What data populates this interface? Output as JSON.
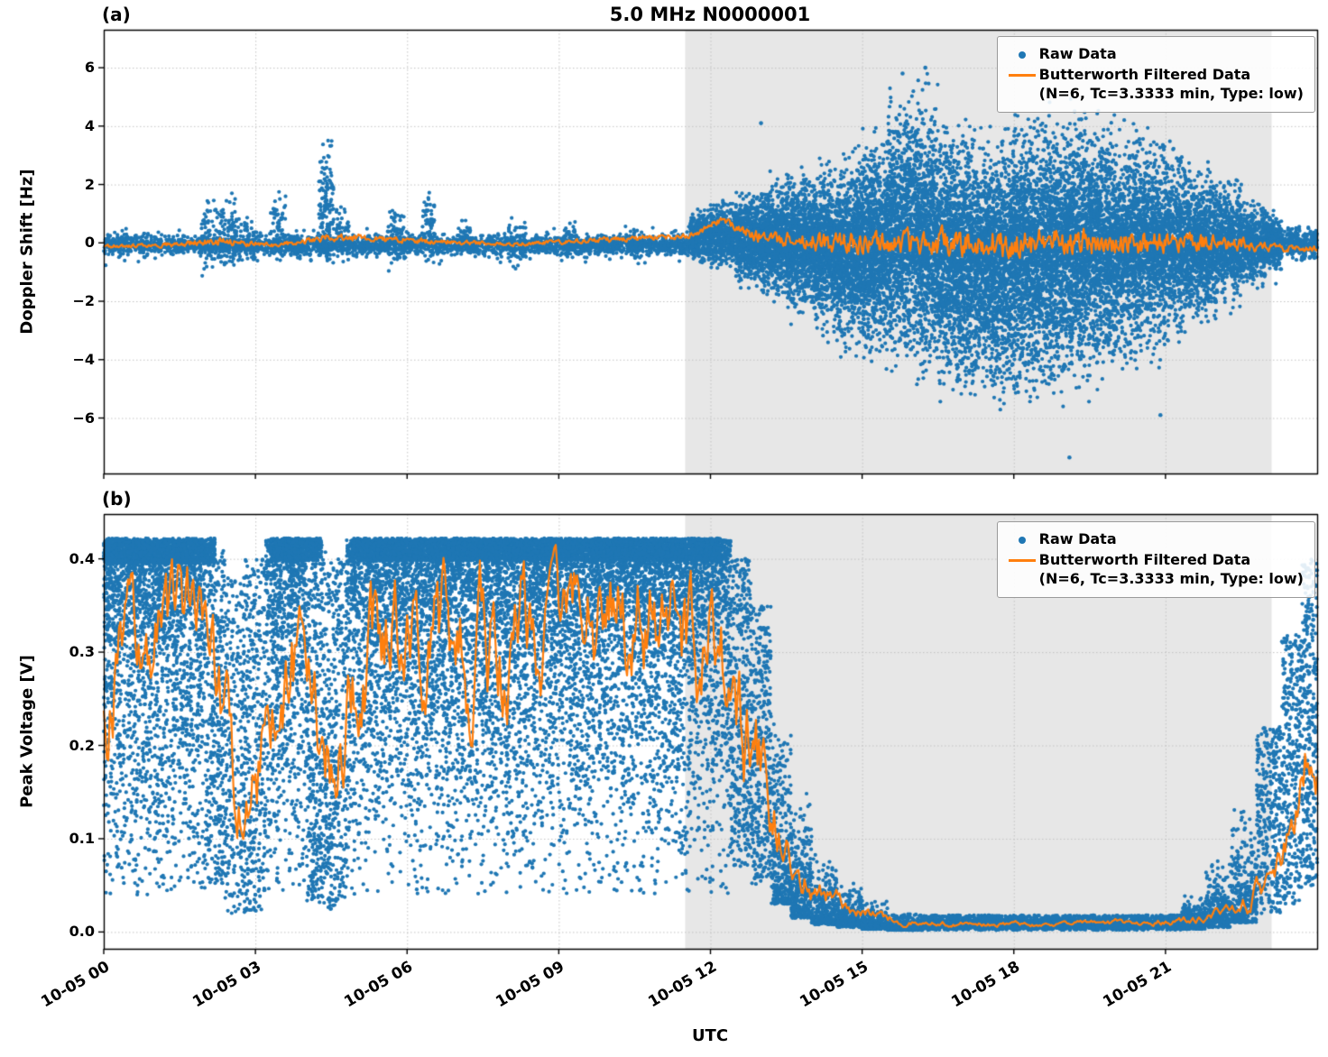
{
  "figure": {
    "title": "5.0 MHz N0000001",
    "xlabel": "UTC"
  },
  "colors": {
    "raw": "#1f77b4",
    "filtered": "#ff7f0e",
    "shade": "#e7e7e7",
    "grid": "#c3c3c3",
    "frame": "#000000"
  },
  "legend": {
    "raw_label": "Raw Data",
    "filtered_label": "Butterworth Filtered Data",
    "filtered_sub": "(N=6, Tc=3.3333 min, Type: low)"
  },
  "chart_data": [
    {
      "type": "scatter",
      "panel": "(a)",
      "ylabel": "Doppler Shift [Hz]",
      "xlim": [
        0,
        24
      ],
      "ylim": [
        -7.9,
        7.3
      ],
      "yticks": [
        -6,
        -4,
        -2,
        0,
        2,
        4,
        6
      ],
      "ytick_labels": [
        "−6",
        "−4",
        "−2",
        "0",
        "2",
        "4",
        "6"
      ],
      "xticks": [
        0,
        3,
        6,
        9,
        12,
        15,
        18,
        21
      ],
      "xtick_labels": [
        "10-05 00",
        "10-05 03",
        "10-05 06",
        "10-05 09",
        "10-05 12",
        "10-05 15",
        "10-05 18",
        "10-05 21"
      ],
      "show_xtick_labels": false,
      "shaded_x": [
        11.5,
        23.1
      ],
      "segment_format": [
        "x0",
        "x1",
        "ymin",
        "ymax",
        "n",
        "dist"
      ],
      "scatter_envelope": [
        [
          0,
          11.6,
          -0.5,
          0.35,
          2400,
          "c"
        ],
        [
          0,
          11.6,
          -0.85,
          0.65,
          700,
          "c"
        ],
        [
          1.9,
          2.6,
          -1.4,
          2.1,
          150,
          "c"
        ],
        [
          2.6,
          3.1,
          -0.9,
          1.2,
          70,
          "c"
        ],
        [
          3.3,
          3.6,
          -0.8,
          2.2,
          60,
          "c"
        ],
        [
          4.25,
          4.55,
          -1.6,
          4.35,
          140,
          "c"
        ],
        [
          4.6,
          4.85,
          -0.7,
          1.5,
          50,
          "c"
        ],
        [
          5.6,
          5.95,
          -1.2,
          1.6,
          80,
          "c"
        ],
        [
          6.3,
          6.55,
          -0.8,
          2.3,
          60,
          "c"
        ],
        [
          7.0,
          7.25,
          -0.6,
          1.1,
          40,
          "c"
        ],
        [
          8.0,
          8.35,
          -1.3,
          1.3,
          70,
          "c"
        ],
        [
          9.1,
          9.35,
          -0.7,
          0.9,
          40,
          "c"
        ],
        [
          10.4,
          10.65,
          -0.9,
          0.7,
          40,
          "c"
        ],
        [
          11.6,
          12.0,
          -0.9,
          1.3,
          350,
          "c"
        ],
        [
          12.0,
          12.5,
          -1.1,
          1.6,
          450,
          "c"
        ],
        [
          12.5,
          13.0,
          -1.7,
          2.0,
          550,
          "c"
        ],
        [
          13.0,
          13.5,
          -2.4,
          2.6,
          650,
          "c"
        ],
        [
          13.5,
          14.0,
          -3.0,
          3.0,
          700,
          "c"
        ],
        [
          14.0,
          14.5,
          -3.6,
          3.2,
          750,
          "c"
        ],
        [
          14.5,
          15.0,
          -4.2,
          3.6,
          800,
          "c"
        ],
        [
          15.0,
          15.5,
          -4.8,
          4.3,
          850,
          "c"
        ],
        [
          15.5,
          16.0,
          -5.2,
          5.9,
          850,
          "c"
        ],
        [
          16.0,
          16.5,
          -5.7,
          6.1,
          880,
          "c"
        ],
        [
          16.5,
          17.0,
          -6.0,
          4.9,
          900,
          "c"
        ],
        [
          17.0,
          17.5,
          -6.2,
          4.8,
          900,
          "c"
        ],
        [
          17.5,
          18.0,
          -6.5,
          5.0,
          900,
          "c"
        ],
        [
          18.0,
          18.5,
          -6.4,
          5.2,
          900,
          "c"
        ],
        [
          18.5,
          19.0,
          -6.2,
          5.4,
          850,
          "c"
        ],
        [
          19.0,
          19.5,
          -6.0,
          5.6,
          850,
          "c"
        ],
        [
          19.5,
          20.0,
          -5.6,
          5.2,
          800,
          "c"
        ],
        [
          20.0,
          20.5,
          -5.2,
          4.8,
          750,
          "c"
        ],
        [
          20.5,
          21.0,
          -4.6,
          4.4,
          700,
          "c"
        ],
        [
          21.0,
          21.5,
          -4.0,
          3.9,
          650,
          "c"
        ],
        [
          21.5,
          22.0,
          -3.4,
          3.3,
          550,
          "c"
        ],
        [
          22.0,
          22.5,
          -2.6,
          2.6,
          450,
          "c"
        ],
        [
          22.5,
          23.0,
          -1.8,
          1.8,
          400,
          "c"
        ],
        [
          23.0,
          23.3,
          -1.2,
          1.2,
          250,
          "c"
        ],
        [
          23.3,
          24.0,
          -0.8,
          0.7,
          300,
          "c"
        ],
        [
          12.5,
          23.2,
          -1.6,
          1.4,
          2600,
          "c"
        ]
      ],
      "outliers": [
        [
          19.1,
          -7.35
        ],
        [
          15.8,
          5.8
        ],
        [
          16.25,
          6.0
        ],
        [
          20.9,
          -5.9
        ],
        [
          13.0,
          4.1
        ]
      ],
      "line_envelope_format": [
        "x0",
        "x1",
        "base",
        "amplitude"
      ],
      "line_envelope": [
        [
          0,
          1.9,
          -0.1,
          0.1
        ],
        [
          1.9,
          2.6,
          0.05,
          0.18
        ],
        [
          2.6,
          4.2,
          -0.08,
          0.1
        ],
        [
          4.2,
          4.6,
          0.2,
          0.2
        ],
        [
          4.6,
          11.5,
          -0.05,
          0.09
        ],
        [
          11.5,
          11.9,
          0.25,
          0.15
        ],
        [
          11.9,
          12.5,
          0.8,
          0.2
        ],
        [
          12.5,
          13.2,
          0.25,
          0.3
        ],
        [
          13.2,
          15.0,
          0.0,
          0.5
        ],
        [
          15.0,
          20.0,
          0.0,
          0.8
        ],
        [
          20.0,
          22.0,
          0.0,
          0.6
        ],
        [
          22.0,
          23.0,
          -0.05,
          0.35
        ],
        [
          23.0,
          24.0,
          -0.2,
          0.15
        ]
      ]
    },
    {
      "type": "scatter",
      "panel": "(b)",
      "ylabel": "Peak Voltage [V]",
      "xlim": [
        0,
        24
      ],
      "ylim": [
        -0.018,
        0.448
      ],
      "yticks": [
        0.0,
        0.1,
        0.2,
        0.3,
        0.4
      ],
      "ytick_labels": [
        "0.0",
        "0.1",
        "0.2",
        "0.3",
        "0.4"
      ],
      "xticks": [
        0,
        3,
        6,
        9,
        12,
        15,
        18,
        21
      ],
      "xtick_labels": [
        "10-05 00",
        "10-05 03",
        "10-05 06",
        "10-05 09",
        "10-05 12",
        "10-05 15",
        "10-05 18",
        "10-05 21"
      ],
      "show_xtick_labels": true,
      "shaded_x": [
        11.5,
        23.1
      ],
      "segment_format": [
        "x0",
        "x1",
        "ymin",
        "ymax",
        "n",
        "dist"
      ],
      "scatter_envelope": [
        [
          0.0,
          0.4,
          0.07,
          0.41,
          420,
          "t"
        ],
        [
          0.4,
          0.8,
          0.1,
          0.42,
          420,
          "t"
        ],
        [
          0.8,
          1.2,
          0.06,
          0.42,
          420,
          "t"
        ],
        [
          1.2,
          1.6,
          0.1,
          0.42,
          420,
          "t"
        ],
        [
          1.6,
          2.0,
          0.08,
          0.42,
          420,
          "t"
        ],
        [
          2.0,
          2.4,
          0.05,
          0.41,
          380,
          "u"
        ],
        [
          2.4,
          2.8,
          0.02,
          0.38,
          300,
          "u"
        ],
        [
          2.8,
          3.2,
          0.02,
          0.4,
          320,
          "u"
        ],
        [
          3.2,
          3.6,
          0.05,
          0.42,
          420,
          "t"
        ],
        [
          3.6,
          4.0,
          0.06,
          0.42,
          420,
          "t"
        ],
        [
          4.0,
          4.4,
          0.03,
          0.42,
          400,
          "u"
        ],
        [
          4.4,
          4.8,
          0.02,
          0.4,
          320,
          "u"
        ],
        [
          4.8,
          5.2,
          0.05,
          0.42,
          420,
          "t"
        ],
        [
          5.2,
          5.6,
          0.08,
          0.42,
          450,
          "t"
        ],
        [
          5.6,
          6.0,
          0.1,
          0.42,
          450,
          "t"
        ],
        [
          6.0,
          6.4,
          0.07,
          0.42,
          450,
          "t"
        ],
        [
          6.4,
          6.8,
          0.1,
          0.42,
          450,
          "t"
        ],
        [
          6.8,
          7.2,
          0.06,
          0.42,
          450,
          "t"
        ],
        [
          7.2,
          7.6,
          0.1,
          0.42,
          450,
          "t"
        ],
        [
          7.6,
          8.0,
          0.08,
          0.42,
          450,
          "t"
        ],
        [
          8.0,
          8.4,
          0.06,
          0.42,
          450,
          "t"
        ],
        [
          8.4,
          8.8,
          0.1,
          0.42,
          450,
          "t"
        ],
        [
          8.8,
          9.2,
          0.08,
          0.42,
          450,
          "t"
        ],
        [
          9.2,
          9.6,
          0.06,
          0.42,
          450,
          "t"
        ],
        [
          9.6,
          10.0,
          0.1,
          0.42,
          450,
          "t"
        ],
        [
          10.0,
          10.4,
          0.07,
          0.42,
          450,
          "t"
        ],
        [
          10.4,
          10.8,
          0.1,
          0.42,
          450,
          "t"
        ],
        [
          10.8,
          11.2,
          0.08,
          0.42,
          450,
          "t"
        ],
        [
          11.2,
          11.6,
          0.06,
          0.42,
          450,
          "t"
        ],
        [
          11.6,
          12.0,
          0.1,
          0.42,
          450,
          "t"
        ],
        [
          12.0,
          12.4,
          0.1,
          0.42,
          420,
          "t"
        ],
        [
          0.0,
          2.0,
          0.04,
          0.25,
          350,
          "u"
        ],
        [
          3.2,
          12.4,
          0.04,
          0.25,
          900,
          "u"
        ],
        [
          0.0,
          2.2,
          0.395,
          0.422,
          1200,
          "u"
        ],
        [
          3.3,
          4.3,
          0.398,
          0.422,
          600,
          "u"
        ],
        [
          4.9,
          12.2,
          0.398,
          0.422,
          4200,
          "u"
        ],
        [
          12.4,
          12.8,
          0.07,
          0.4,
          400,
          "u"
        ],
        [
          12.8,
          13.2,
          0.05,
          0.35,
          380,
          "u"
        ],
        [
          13.2,
          13.6,
          0.03,
          0.25,
          350,
          "b"
        ],
        [
          13.6,
          14.0,
          0.015,
          0.15,
          320,
          "b"
        ],
        [
          14.0,
          14.5,
          0.008,
          0.09,
          300,
          "b"
        ],
        [
          14.5,
          15.0,
          0.005,
          0.055,
          280,
          "b"
        ],
        [
          15.0,
          15.5,
          0.003,
          0.035,
          260,
          "b"
        ],
        [
          15.5,
          16.2,
          0.002,
          0.022,
          300,
          "b"
        ],
        [
          16.2,
          21.3,
          0.002,
          0.018,
          1500,
          "u"
        ],
        [
          16.2,
          21.3,
          0.004,
          0.012,
          1200,
          "u"
        ],
        [
          21.3,
          21.8,
          0.003,
          0.04,
          260,
          "b"
        ],
        [
          21.8,
          22.3,
          0.005,
          0.08,
          280,
          "b"
        ],
        [
          22.3,
          22.8,
          0.01,
          0.14,
          300,
          "b"
        ],
        [
          22.8,
          23.3,
          0.02,
          0.22,
          320,
          "u"
        ],
        [
          23.3,
          23.7,
          0.03,
          0.32,
          340,
          "u"
        ],
        [
          23.7,
          24.0,
          0.05,
          0.4,
          320,
          "u"
        ]
      ],
      "outliers": [],
      "line_envelope_format": [
        "x0",
        "x1",
        "base",
        "amplitude"
      ],
      "line_envelope": [
        [
          0.0,
          0.3,
          0.28,
          0.08
        ],
        [
          0.3,
          0.8,
          0.32,
          0.06
        ],
        [
          0.8,
          1.3,
          0.3,
          0.08
        ],
        [
          1.3,
          1.8,
          0.33,
          0.06
        ],
        [
          1.8,
          2.3,
          0.28,
          0.08
        ],
        [
          2.3,
          2.7,
          0.18,
          0.08
        ],
        [
          2.7,
          3.0,
          0.12,
          0.05
        ],
        [
          3.0,
          3.4,
          0.2,
          0.08
        ],
        [
          3.4,
          3.9,
          0.3,
          0.08
        ],
        [
          3.9,
          4.3,
          0.33,
          0.07
        ],
        [
          4.3,
          4.7,
          0.2,
          0.1
        ],
        [
          4.7,
          5.2,
          0.3,
          0.08
        ],
        [
          5.2,
          6.0,
          0.33,
          0.07
        ],
        [
          6.0,
          7.0,
          0.32,
          0.08
        ],
        [
          7.0,
          8.0,
          0.3,
          0.09
        ],
        [
          8.0,
          9.0,
          0.33,
          0.07
        ],
        [
          9.0,
          10.0,
          0.32,
          0.08
        ],
        [
          10.0,
          11.0,
          0.33,
          0.07
        ],
        [
          11.0,
          12.0,
          0.32,
          0.08
        ],
        [
          12.0,
          12.5,
          0.3,
          0.08
        ],
        [
          12.5,
          13.0,
          0.22,
          0.08
        ],
        [
          13.0,
          13.4,
          0.12,
          0.05
        ],
        [
          13.4,
          13.8,
          0.07,
          0.03
        ],
        [
          13.8,
          14.3,
          0.045,
          0.02
        ],
        [
          14.3,
          14.8,
          0.03,
          0.012
        ],
        [
          14.8,
          15.5,
          0.018,
          0.008
        ],
        [
          15.5,
          16.2,
          0.01,
          0.004
        ],
        [
          16.2,
          21.3,
          0.008,
          0.003
        ],
        [
          21.3,
          21.9,
          0.012,
          0.005
        ],
        [
          21.9,
          22.4,
          0.02,
          0.008
        ],
        [
          22.4,
          22.9,
          0.035,
          0.015
        ],
        [
          22.9,
          23.4,
          0.06,
          0.025
        ],
        [
          23.4,
          23.8,
          0.12,
          0.05
        ],
        [
          23.8,
          24.0,
          0.22,
          0.06
        ]
      ]
    }
  ]
}
